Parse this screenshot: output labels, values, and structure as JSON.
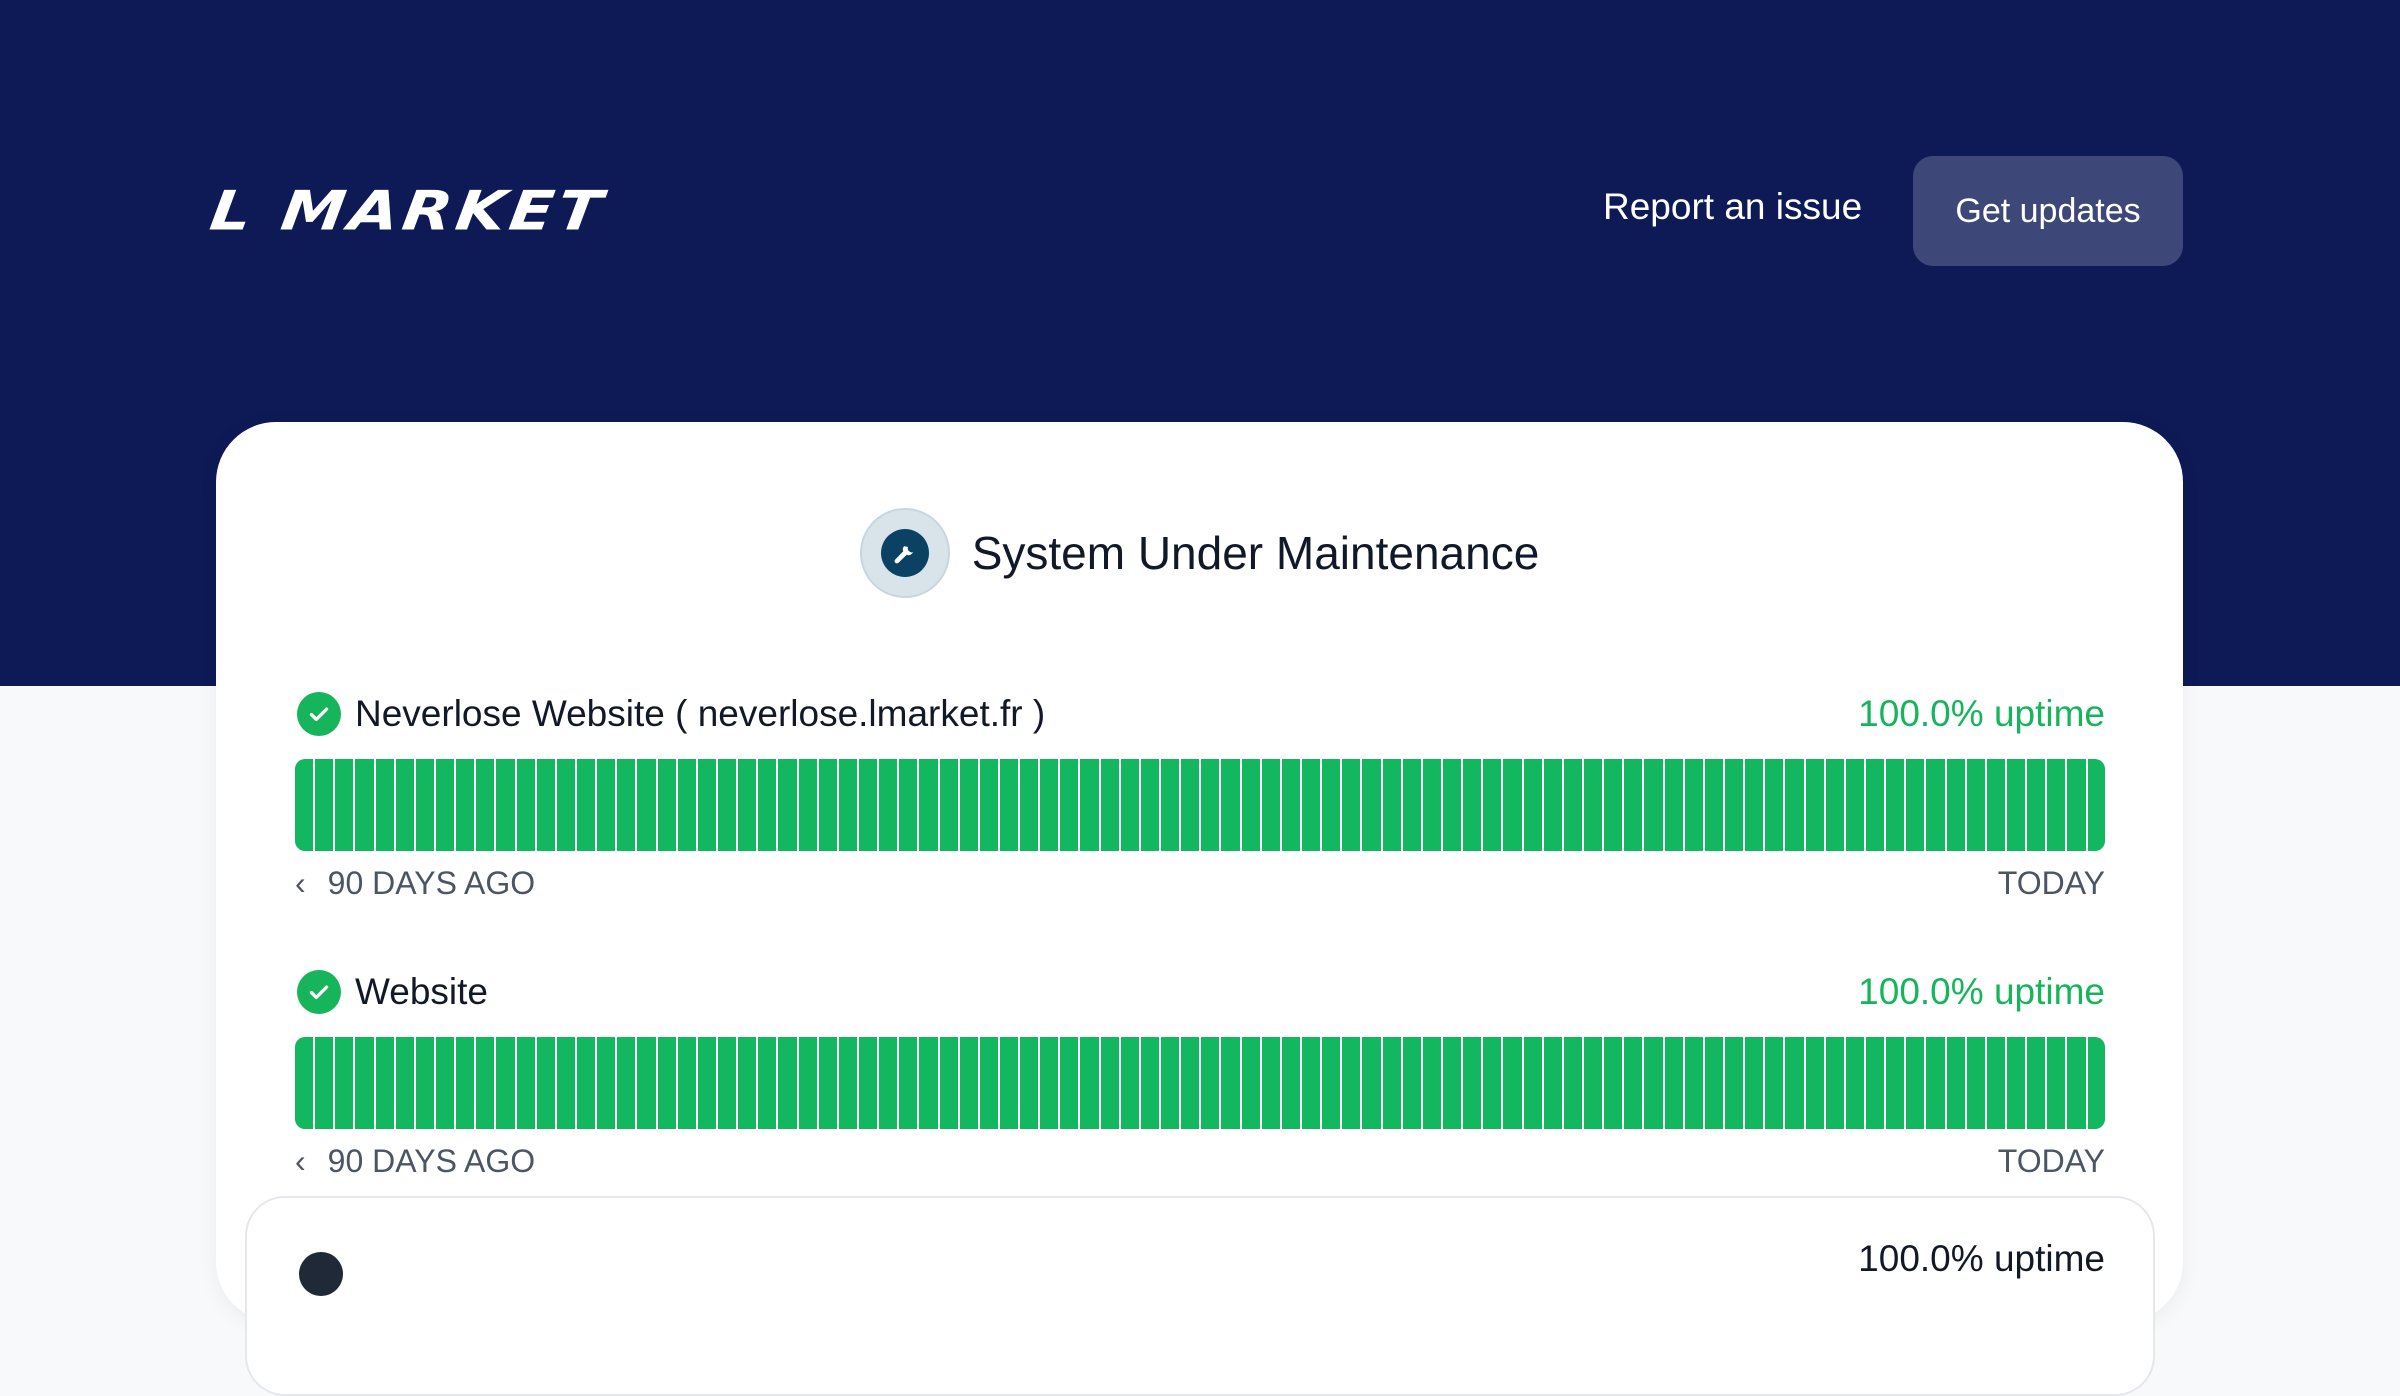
{
  "header": {
    "logo_text": "L MARKET",
    "report_label": "Report an issue",
    "get_updates_label": "Get updates"
  },
  "status": {
    "title": "System Under Maintenance",
    "icon": "wrench-icon"
  },
  "colors": {
    "header_bg": "#0e1a56",
    "operational": "#12b75f",
    "maintenance": "#0b4263"
  },
  "components": [
    {
      "name": "Neverlose Website ( neverlose.lmarket.fr )",
      "uptime": "100.0% uptime",
      "days": 90,
      "start_label": "90 DAYS AGO",
      "end_label": "TODAY",
      "status": "operational"
    },
    {
      "name": "Website",
      "uptime": "100.0% uptime",
      "days": 90,
      "start_label": "90 DAYS AGO",
      "end_label": "TODAY",
      "status": "operational"
    }
  ],
  "group": {
    "uptime": "100.0% uptime"
  }
}
